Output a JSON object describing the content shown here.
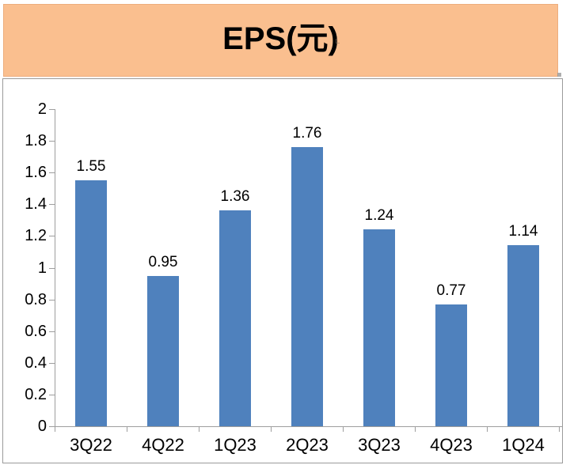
{
  "header": {
    "title": "EPS(元)"
  },
  "chart_data": {
    "type": "bar",
    "title": "EPS(元)",
    "categories": [
      "3Q22",
      "4Q22",
      "1Q23",
      "2Q23",
      "3Q23",
      "4Q23",
      "1Q24"
    ],
    "values": [
      1.55,
      0.95,
      1.36,
      1.76,
      1.24,
      0.77,
      1.14
    ],
    "data_labels": [
      "1.55",
      "0.95",
      "1.36",
      "1.76",
      "1.24",
      "0.77",
      "1.14"
    ],
    "xlabel": "",
    "ylabel": "",
    "ylim": [
      0,
      2
    ],
    "ytick_interval": 0.2,
    "ytick_labels": [
      "0",
      "0.2",
      "0.4",
      "0.6",
      "0.8",
      "1",
      "1.2",
      "1.4",
      "1.6",
      "1.8",
      "2"
    ],
    "grid": false,
    "legend": "none",
    "bar_color": "#4f81bd"
  },
  "colors": {
    "bar": "#4f81bd",
    "header_bg": "#fabf8f",
    "header_border": "#edad7d",
    "chart_border": "#9a9a9a",
    "axis_line": "#9e9e9e",
    "text": "#000000",
    "chart_bg": "#ffffff"
  }
}
